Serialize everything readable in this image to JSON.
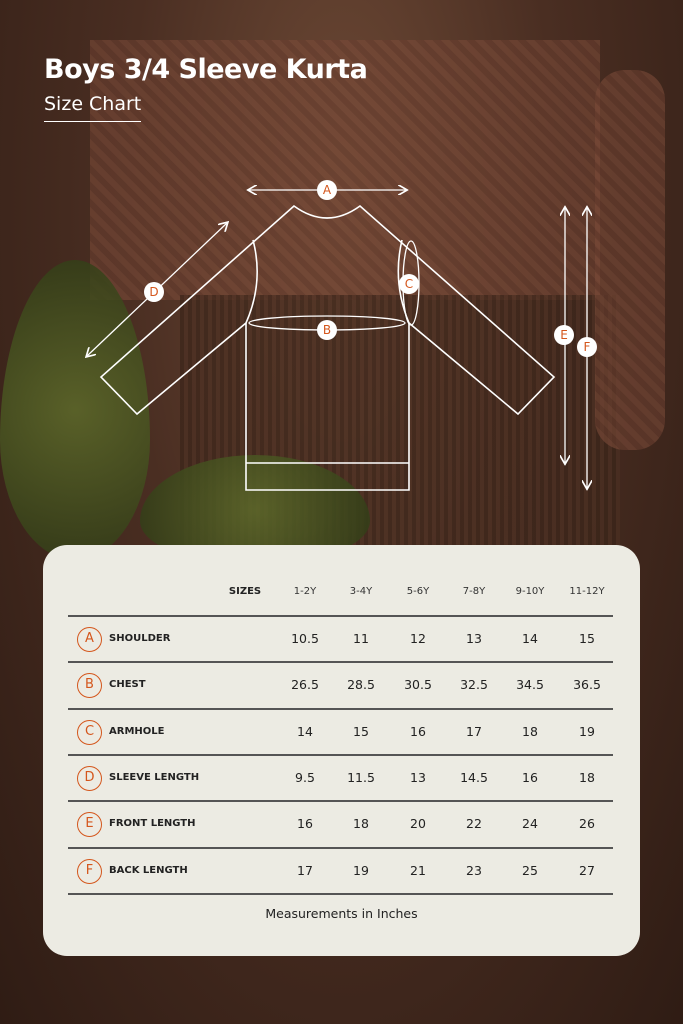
{
  "header": {
    "title": "Boys 3/4 Sleeve Kurta",
    "subtitle": "Size Chart"
  },
  "diagram": {
    "labels": [
      "A",
      "B",
      "C",
      "D",
      "E",
      "F"
    ],
    "accent": "#d4561c"
  },
  "table": {
    "sizes_label": "SIZES",
    "sizes": [
      "1-2Y",
      "3-4Y",
      "5-6Y",
      "7-8Y",
      "9-10Y",
      "11-12Y"
    ],
    "rows": [
      {
        "key": "A",
        "label": "SHOULDER",
        "values": [
          "10.5",
          "11",
          "12",
          "13",
          "14",
          "15"
        ]
      },
      {
        "key": "B",
        "label": "CHEST",
        "values": [
          "26.5",
          "28.5",
          "30.5",
          "32.5",
          "34.5",
          "36.5"
        ]
      },
      {
        "key": "C",
        "label": "ARMHOLE",
        "values": [
          "14",
          "15",
          "16",
          "17",
          "18",
          "19"
        ]
      },
      {
        "key": "D",
        "label": "SLEEVE LENGTH",
        "values": [
          "9.5",
          "11.5",
          "13",
          "14.5",
          "16",
          "18"
        ]
      },
      {
        "key": "E",
        "label": "FRONT LENGTH",
        "values": [
          "16",
          "18",
          "20",
          "22",
          "24",
          "26"
        ]
      },
      {
        "key": "F",
        "label": "BACK LENGTH",
        "values": [
          "17",
          "19",
          "21",
          "23",
          "25",
          "27"
        ]
      }
    ],
    "footer": "Measurements in Inches"
  }
}
